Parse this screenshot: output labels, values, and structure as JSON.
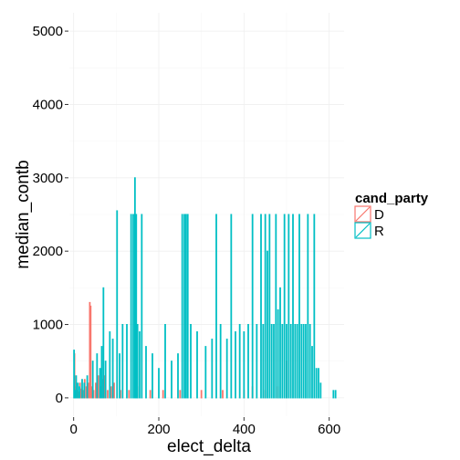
{
  "chart_data": {
    "type": "bar",
    "xlabel": "elect_delta",
    "ylabel": "median_contb",
    "xlim": [
      -10,
      635
    ],
    "ylim": [
      -250,
      5250
    ],
    "xticks": [
      0,
      200,
      400,
      600
    ],
    "yticks": [
      0,
      1000,
      2000,
      3000,
      4000,
      5000
    ],
    "grid": true,
    "legend": {
      "title": "cand_party",
      "placement": "right",
      "entries": [
        {
          "label": "D",
          "color": "#F8766D"
        },
        {
          "label": "R",
          "color": "#00BFC4"
        }
      ]
    },
    "series": [
      {
        "name": "D",
        "color": "#F8766D",
        "x": [
          2,
          5,
          8,
          12,
          15,
          18,
          22,
          26,
          30,
          35,
          38,
          40,
          43,
          47,
          52,
          58,
          63,
          68,
          73,
          80,
          88,
          95,
          110,
          130,
          150,
          180,
          210,
          250,
          300,
          350,
          400,
          420,
          450,
          480,
          500
        ],
        "y": [
          600,
          150,
          100,
          80,
          200,
          120,
          100,
          250,
          150,
          200,
          1300,
          1250,
          150,
          100,
          200,
          300,
          150,
          250,
          300,
          100,
          150,
          200,
          100,
          100,
          150,
          100,
          100,
          100,
          100,
          100,
          100,
          150,
          100,
          150,
          500
        ]
      },
      {
        "name": "R",
        "color": "#00BFC4",
        "x": [
          1,
          3,
          6,
          10,
          14,
          20,
          25,
          32,
          45,
          55,
          62,
          66,
          70,
          75,
          85,
          92,
          102,
          108,
          115,
          125,
          135,
          140,
          144,
          147,
          150,
          155,
          160,
          170,
          185,
          200,
          215,
          230,
          245,
          255,
          260,
          264,
          268,
          275,
          290,
          310,
          325,
          335,
          345,
          360,
          370,
          380,
          390,
          400,
          410,
          420,
          430,
          440,
          445,
          450,
          455,
          460,
          465,
          470,
          475,
          480,
          485,
          490,
          495,
          500,
          505,
          510,
          515,
          520,
          525,
          530,
          535,
          540,
          545,
          550,
          555,
          560,
          565,
          570,
          575,
          580,
          610,
          615
        ],
        "y": [
          650,
          100,
          300,
          200,
          150,
          250,
          200,
          300,
          500,
          600,
          400,
          700,
          1500,
          500,
          900,
          800,
          2550,
          600,
          1000,
          1000,
          2500,
          2500,
          3000,
          2500,
          1000,
          900,
          2500,
          700,
          600,
          400,
          1000,
          500,
          600,
          2500,
          2500,
          2500,
          2500,
          1000,
          900,
          700,
          800,
          2500,
          1000,
          800,
          2500,
          900,
          1000,
          900,
          1000,
          2500,
          1000,
          2500,
          1000,
          2500,
          2000,
          2500,
          1000,
          1000,
          2500,
          1200,
          1500,
          1000,
          2500,
          1000,
          2500,
          1000,
          2500,
          1000,
          1000,
          2500,
          1000,
          1000,
          1000,
          2500,
          1000,
          700,
          2500,
          400,
          400,
          200,
          100,
          100
        ]
      }
    ]
  }
}
